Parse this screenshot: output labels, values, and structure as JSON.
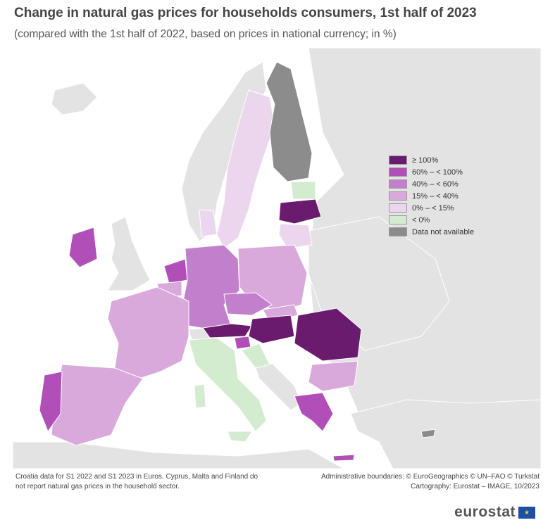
{
  "title": "Change in natural gas prices for households consumers, 1st half of 2023",
  "subtitle": "(compared with the 1st half of 2022, based on prices in national currency; in %)",
  "legend": [
    {
      "label": "≥ 100%",
      "color": "#6a1b6e"
    },
    {
      "label": "60% – < 100%",
      "color": "#b04fb7"
    },
    {
      "label": "40% – < 60%",
      "color": "#c27fcc"
    },
    {
      "label": "15% – < 40%",
      "color": "#d9a9dc"
    },
    {
      "label": "0% – < 15%",
      "color": "#ecd6ee"
    },
    {
      "label": "< 0%",
      "color": "#d3ecd0"
    },
    {
      "label": "Data not available",
      "color": "#8c8c8c"
    }
  ],
  "footnote_left": "Croatia data for S1 2022 and S1 2023 in Euros. Cyprus, Malta and Finland do not report natural gas prices in the household sector.",
  "footnote_right_line1": "Administrative boundaries: © EuroGeographics © UN–FAO © Turkstat",
  "footnote_right_line2": "Cartography: Eurostat – IMAGE, 10/2023",
  "brand": "eurostat"
}
